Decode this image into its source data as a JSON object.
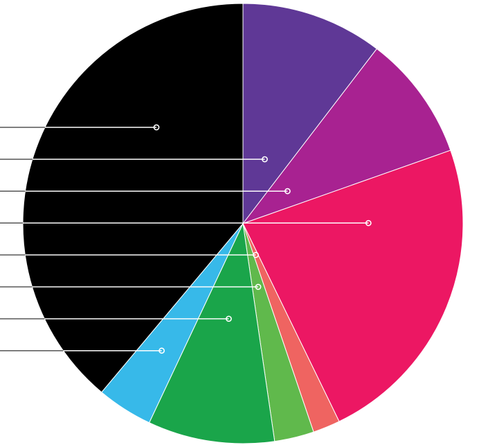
{
  "chart_data": {
    "type": "pie",
    "slices": [
      {
        "value": 10.4,
        "color": "#5f3896"
      },
      {
        "value": 9.2,
        "color": "#a82291"
      },
      {
        "value": 23.2,
        "color": "#ec1763"
      },
      {
        "value": 2.0,
        "color": "#ef6461"
      },
      {
        "value": 2.9,
        "color": "#60b94c"
      },
      {
        "value": 9.3,
        "color": "#1aa54a"
      },
      {
        "value": 4.1,
        "color": "#37b9e9"
      },
      {
        "value": 38.9,
        "color": "#000000"
      }
    ],
    "leader_order": [
      7,
      0,
      1,
      2,
      3,
      4,
      5,
      6
    ],
    "leader_color": "#ffffff"
  }
}
